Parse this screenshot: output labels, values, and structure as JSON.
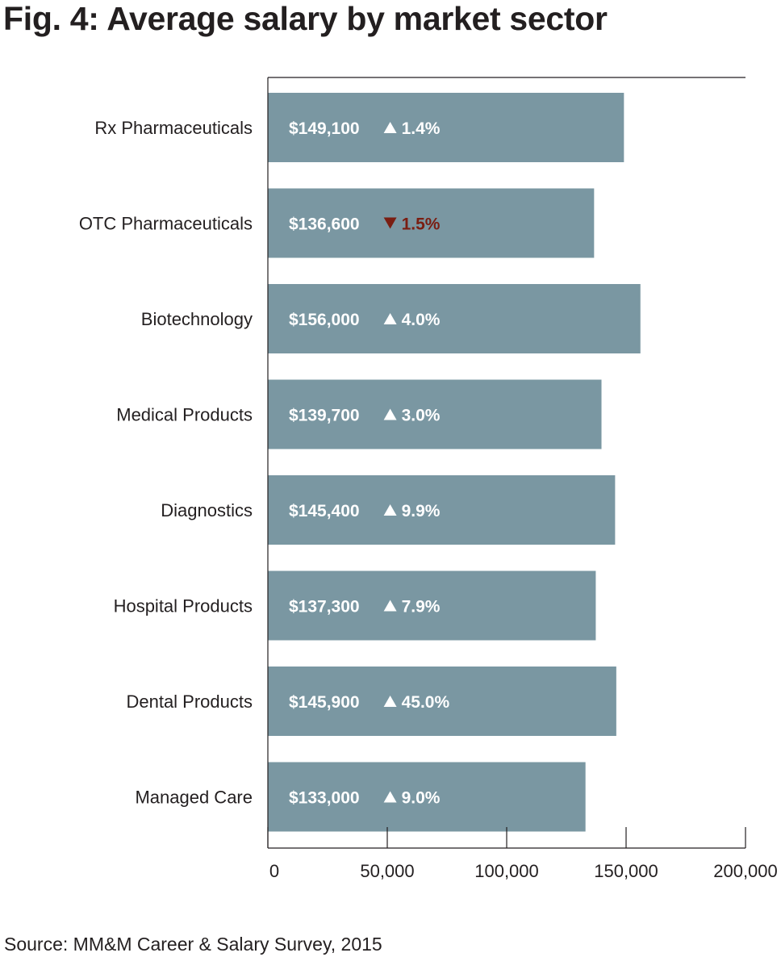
{
  "title": "Fig. 4: Average salary by market sector",
  "source": "Source: MM&M Career & Salary Survey, 2015",
  "colors": {
    "bar": "#7a97a2",
    "up": "#ffffff",
    "down": "#7a1e12",
    "axis": "#231f20"
  },
  "chart_data": {
    "type": "bar",
    "orientation": "horizontal",
    "title": "Fig. 4: Average salary by market sector",
    "xlabel": "",
    "ylabel": "",
    "xlim": [
      0,
      200000
    ],
    "xticks": [
      0,
      50000,
      100000,
      150000,
      200000
    ],
    "xtick_labels": [
      "0",
      "50,000",
      "100,000",
      "150,000",
      "200,000"
    ],
    "grid": false,
    "categories": [
      "Rx Pharmaceuticals",
      "OTC Pharmaceuticals",
      "Biotechnology",
      "Medical Products",
      "Diagnostics",
      "Hospital Products",
      "Dental Products",
      "Managed Care"
    ],
    "values": [
      149100,
      136600,
      156000,
      139700,
      145400,
      137300,
      145900,
      133000
    ],
    "value_labels": [
      "$149,100",
      "$136,600",
      "$156,000",
      "$139,700",
      "$145,400",
      "$137,300",
      "$145,900",
      "$133,000"
    ],
    "change_labels": [
      "1.4%",
      "1.5%",
      "4.0%",
      "3.0%",
      "9.9%",
      "7.9%",
      "45.0%",
      "9.0%"
    ],
    "change_direction": [
      "up",
      "down",
      "up",
      "up",
      "up",
      "up",
      "up",
      "up"
    ]
  }
}
